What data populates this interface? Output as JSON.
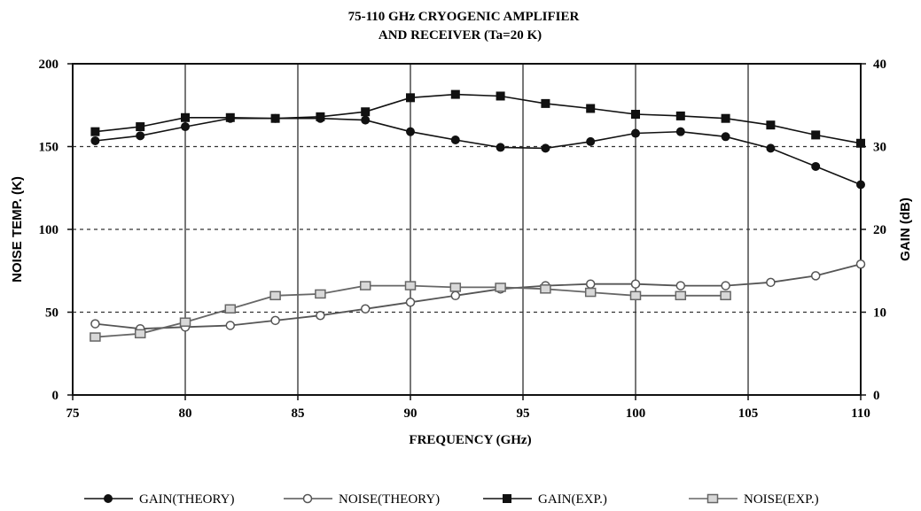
{
  "chart_data": {
    "type": "line",
    "title": [
      "75-110 GHz  CRYOGENIC  AMPLIFIER",
      "AND RECEIVER  (Ta=20 K)"
    ],
    "xlabel": "FREQUENCY (GHz)",
    "ylabel_left": "NOISE TEMP. (K)",
    "ylabel_right": "GAIN (dB)",
    "xlim": [
      75,
      110
    ],
    "ylim_left": [
      0,
      200
    ],
    "ylim_right": [
      0,
      40
    ],
    "x_ticks": [
      "75",
      "80",
      "85",
      "90",
      "95",
      "100",
      "105",
      "110"
    ],
    "y_ticks_left": [
      "0",
      "50",
      "100",
      "150",
      "200"
    ],
    "y_ticks_right": [
      "0",
      "10",
      "20",
      "30",
      "40"
    ],
    "grid": {
      "vertical": "solid",
      "horizontal": "dashed"
    },
    "legend_position": "bottom",
    "series": [
      {
        "name": "GAIN(THEORY)",
        "axis": "right",
        "marker": "filled-circle",
        "color": "#111111",
        "x": [
          76,
          78,
          80,
          82,
          84,
          86,
          88,
          90,
          92,
          94,
          96,
          98,
          100,
          102,
          104,
          106,
          108,
          110
        ],
        "values": [
          30.7,
          31.3,
          32.4,
          33.4,
          33.4,
          33.4,
          33.2,
          31.8,
          30.8,
          29.9,
          29.8,
          30.6,
          31.6,
          31.8,
          31.2,
          29.8,
          27.6,
          25.4
        ]
      },
      {
        "name": "NOISE(THEORY)",
        "axis": "left",
        "marker": "open-circle",
        "color": "#555555",
        "x": [
          76,
          78,
          80,
          82,
          84,
          86,
          88,
          90,
          92,
          94,
          96,
          98,
          100,
          102,
          104,
          106,
          108,
          110
        ],
        "values": [
          43,
          40,
          41,
          42,
          45,
          48,
          52,
          56,
          60,
          64,
          66,
          67,
          67,
          66,
          66,
          68,
          72,
          79
        ]
      },
      {
        "name": "GAIN(EXP.)",
        "axis": "right",
        "marker": "filled-square",
        "color": "#111111",
        "x": [
          76,
          78,
          80,
          82,
          84,
          86,
          88,
          90,
          92,
          94,
          96,
          98,
          100,
          102,
          104,
          106,
          108,
          110
        ],
        "values": [
          31.8,
          32.4,
          33.5,
          33.5,
          33.4,
          33.6,
          34.2,
          35.9,
          36.3,
          36.1,
          35.2,
          34.6,
          33.9,
          33.7,
          33.4,
          32.6,
          31.4,
          30.4
        ]
      },
      {
        "name": "NOISE(EXP.)",
        "axis": "left",
        "marker": "open-square",
        "color": "#666666",
        "x": [
          76,
          78,
          80,
          82,
          84,
          86,
          88,
          90,
          92,
          94,
          96,
          98,
          100,
          102,
          104
        ],
        "values": [
          35,
          37,
          44,
          52,
          60,
          61,
          66,
          66,
          65,
          65,
          64,
          62,
          60,
          60,
          60
        ]
      }
    ]
  }
}
